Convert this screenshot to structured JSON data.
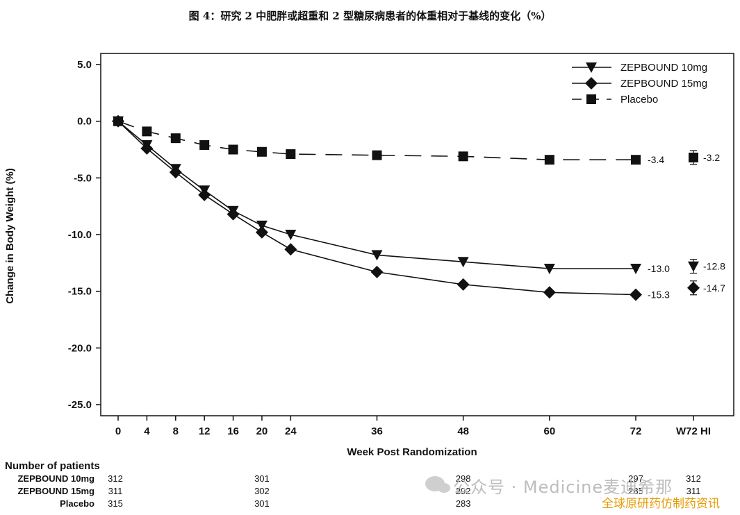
{
  "title": "图 4：研究 2 中肥胖或超重和 2 型糖尿病患者的体重相对于基线的变化（%）",
  "chart_data": {
    "type": "line",
    "xlabel": "Week Post Randomization",
    "ylabel": "Change in Body Weight (%)",
    "ylim": [
      -27.5,
      5.0
    ],
    "yticks": [
      "5.0",
      "0.0",
      "-5.0",
      "-10.0",
      "-15.0",
      "-20.0",
      "-25.0"
    ],
    "ytick_values": [
      5,
      0,
      -5,
      -10,
      -15,
      -20,
      -25
    ],
    "xticks": [
      "0",
      "4",
      "8",
      "12",
      "16",
      "20",
      "24",
      "36",
      "48",
      "60",
      "72",
      "W72 HI"
    ],
    "xtick_values": [
      0,
      4,
      8,
      12,
      16,
      20,
      24,
      36,
      48,
      60,
      72
    ],
    "hi_category": "W72 HI",
    "legend_position": "top-right",
    "grid": false,
    "series": [
      {
        "name": "ZEPBOUND 10mg",
        "marker": "triangle-down",
        "dash": false,
        "x": [
          0,
          4,
          8,
          12,
          16,
          20,
          24,
          36,
          48,
          60,
          72
        ],
        "values": [
          0.0,
          -2.1,
          -4.2,
          -6.1,
          -7.9,
          -9.2,
          -10.0,
          -11.8,
          -12.4,
          -13.0,
          -13.0
        ],
        "end_label": "-13.0",
        "hi_value": -12.8,
        "hi_label": "-12.8"
      },
      {
        "name": "ZEPBOUND 15mg",
        "marker": "diamond",
        "dash": false,
        "x": [
          0,
          4,
          8,
          12,
          16,
          20,
          24,
          36,
          48,
          60,
          72
        ],
        "values": [
          0.0,
          -2.4,
          -4.5,
          -6.5,
          -8.2,
          -9.8,
          -11.3,
          -13.3,
          -14.4,
          -15.1,
          -15.3
        ],
        "end_label": "-15.3",
        "hi_value": -14.7,
        "hi_label": "-14.7"
      },
      {
        "name": "Placebo",
        "marker": "square",
        "dash": true,
        "x": [
          0,
          4,
          8,
          12,
          16,
          20,
          24,
          36,
          48,
          60,
          72
        ],
        "values": [
          0.0,
          -0.9,
          -1.5,
          -2.1,
          -2.5,
          -2.7,
          -2.9,
          -3.0,
          -3.1,
          -3.4,
          -3.4
        ],
        "end_label": "-3.4",
        "hi_value": -3.2,
        "hi_label": "-3.2"
      }
    ]
  },
  "patients": {
    "title": "Number of patients",
    "rows": [
      {
        "name": "ZEPBOUND 10mg",
        "cells": [
          {
            "x": 0,
            "v": "312"
          },
          {
            "x": 20,
            "v": "301"
          },
          {
            "x": 48,
            "v": "298"
          },
          {
            "x": 72,
            "v": "297"
          },
          {
            "x": "HI",
            "v": "312"
          }
        ]
      },
      {
        "name": "ZEPBOUND 15mg",
        "cells": [
          {
            "x": 0,
            "v": "311"
          },
          {
            "x": 20,
            "v": "302"
          },
          {
            "x": 48,
            "v": "292"
          },
          {
            "x": 72,
            "v": "285"
          },
          {
            "x": "HI",
            "v": "311"
          }
        ]
      },
      {
        "name": "Placebo",
        "cells": [
          {
            "x": 0,
            "v": "315"
          },
          {
            "x": 20,
            "v": "301"
          },
          {
            "x": 48,
            "v": "283"
          }
        ]
      }
    ]
  },
  "watermark": {
    "line1": "公众号 · Medicine麦迪希那",
    "line2": "全球原研药仿制药资讯",
    "icon": "wechat-icon"
  }
}
